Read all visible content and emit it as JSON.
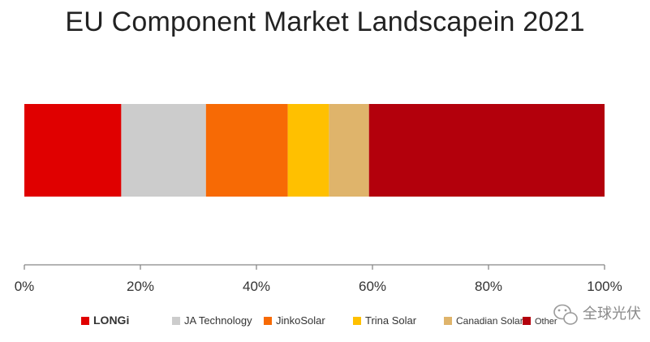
{
  "chart_data": {
    "type": "bar",
    "orientation": "horizontal-stacked",
    "title": "EU Component Market Landscapein 2021",
    "xlabel": "",
    "ylabel": "",
    "xlim": [
      0,
      100
    ],
    "x_ticks": [
      "0%",
      "20%",
      "40%",
      "60%",
      "80%",
      "100%"
    ],
    "x_tick_values": [
      0,
      20,
      40,
      60,
      80,
      100
    ],
    "series": [
      {
        "name": "LONGi",
        "value": 16.7,
        "color": "#e00000"
      },
      {
        "name": "JA Technology",
        "value": 14.6,
        "color": "#cccccc"
      },
      {
        "name": "JinkoSolar",
        "value": 14.1,
        "color": "#f76a05"
      },
      {
        "name": "Trina Solar",
        "value": 7.1,
        "color": "#ffc000"
      },
      {
        "name": "Canadian Solar",
        "value": 6.9,
        "color": "#dfb46b"
      },
      {
        "name": "Other",
        "value": 40.6,
        "color": "#b3000c"
      }
    ],
    "legend_position": "bottom",
    "grid": false
  },
  "watermark": {
    "text": "全球光伏",
    "icon": "wechat-icon"
  }
}
